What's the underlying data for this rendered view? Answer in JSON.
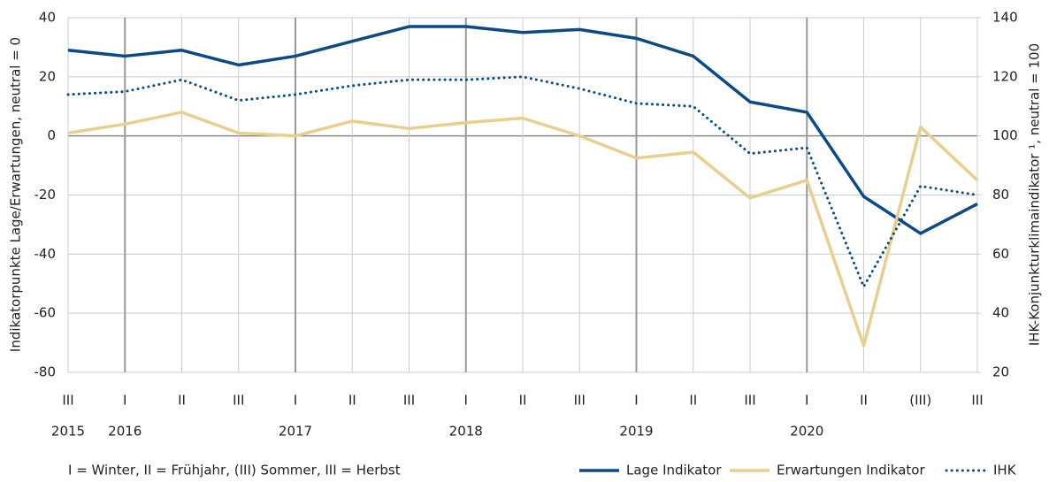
{
  "chart_data": {
    "type": "line",
    "categories": [
      "III",
      "I",
      "II",
      "III",
      "I",
      "II",
      "III",
      "I",
      "II",
      "III",
      "I",
      "II",
      "III",
      "I",
      "II",
      "(III)",
      "III"
    ],
    "years": [
      "2015",
      "2016",
      null,
      null,
      "2017",
      null,
      null,
      "2018",
      null,
      null,
      "2019",
      null,
      null,
      "2020",
      null,
      null,
      null
    ],
    "ylabel": "Indikatorpunkte Lage/Erwartungen, neutral = 0",
    "y2label": "IHK-Konjunkturklimaindikator ¹, neutral = 100",
    "note": "I = Winter, II = Frühjahr, (III) Sommer, III = Herbst",
    "ylim": [
      -80,
      40
    ],
    "yticks": [
      -80,
      -60,
      -40,
      -20,
      0,
      20,
      40
    ],
    "y2lim": [
      20,
      140
    ],
    "y2ticks": [
      20,
      40,
      60,
      80,
      100,
      120,
      140
    ],
    "grid": true,
    "legend": "bottom-right",
    "series": [
      {
        "name": "Lage Indikator",
        "color": "#0b4a85",
        "style": "solid",
        "values": [
          29,
          27,
          29,
          24,
          27,
          32,
          37,
          37,
          35,
          36,
          33,
          27,
          11.5,
          8,
          -20.5,
          -33,
          -23
        ]
      },
      {
        "name": "Erwartungen Indikator",
        "color": "#e8cf8e",
        "style": "solid",
        "values": [
          1,
          4,
          8,
          1,
          0,
          5,
          2.5,
          4.5,
          6,
          0,
          -7.5,
          -5.5,
          -21,
          -15,
          -71,
          3,
          -15
        ]
      },
      {
        "name": "IHK",
        "color": "#0b4a85",
        "style": "dotted",
        "axis": "y2",
        "values": [
          114,
          115,
          119,
          112,
          114,
          117,
          119,
          119,
          120,
          116,
          111,
          110,
          94,
          96,
          49,
          83,
          80
        ]
      }
    ]
  }
}
